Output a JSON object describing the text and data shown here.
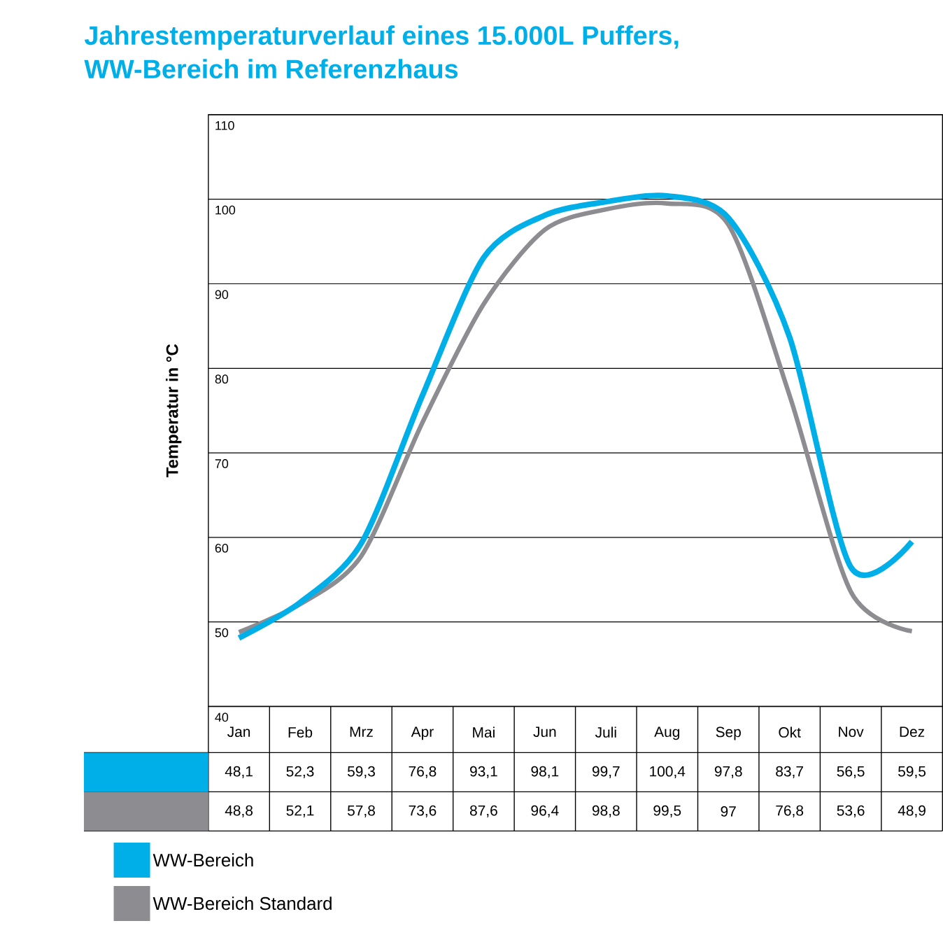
{
  "chart_data": {
    "type": "line",
    "title": "Jahrestemperaturverlauf eines 15.000L Puffers,",
    "subtitle": "WW-Bereich im Referenzhaus",
    "ylabel": "Temperatur in °C",
    "categories": [
      "Jan",
      "Feb",
      "Mrz",
      "Apr",
      "Mai",
      "Jun",
      "Juli",
      "Aug",
      "Sep",
      "Okt",
      "Nov",
      "Dez"
    ],
    "series": [
      {
        "name": "WW-Bereich",
        "color": "#00aee8",
        "values": [
          48.1,
          52.3,
          59.3,
          76.8,
          93.1,
          98.1,
          99.7,
          100.4,
          97.8,
          83.7,
          56.5,
          59.5
        ],
        "value_labels": [
          "48,1",
          "52,3",
          "59,3",
          "76,8",
          "93,1",
          "98,1",
          "99,7",
          "100,4",
          "97,8",
          "83,7",
          "56,5",
          "59,5"
        ]
      },
      {
        "name": "WW-Bereich Standard",
        "color": "#8c8c91",
        "values": [
          48.8,
          52.1,
          57.8,
          73.6,
          87.6,
          96.4,
          98.8,
          99.5,
          97,
          76.8,
          53.6,
          48.9
        ],
        "value_labels": [
          "48,8",
          "52,1",
          "57,8",
          "73,6",
          "87,6",
          "96,4",
          "98,8",
          "99,5",
          "97",
          "76,8",
          "53,6",
          "48,9"
        ]
      }
    ],
    "ylim": [
      40,
      110
    ],
    "yticks": [
      40,
      50,
      60,
      70,
      80,
      90,
      100,
      110
    ],
    "grid": "y",
    "legend": "bottom left",
    "marker": "none",
    "line_style": "solid"
  }
}
